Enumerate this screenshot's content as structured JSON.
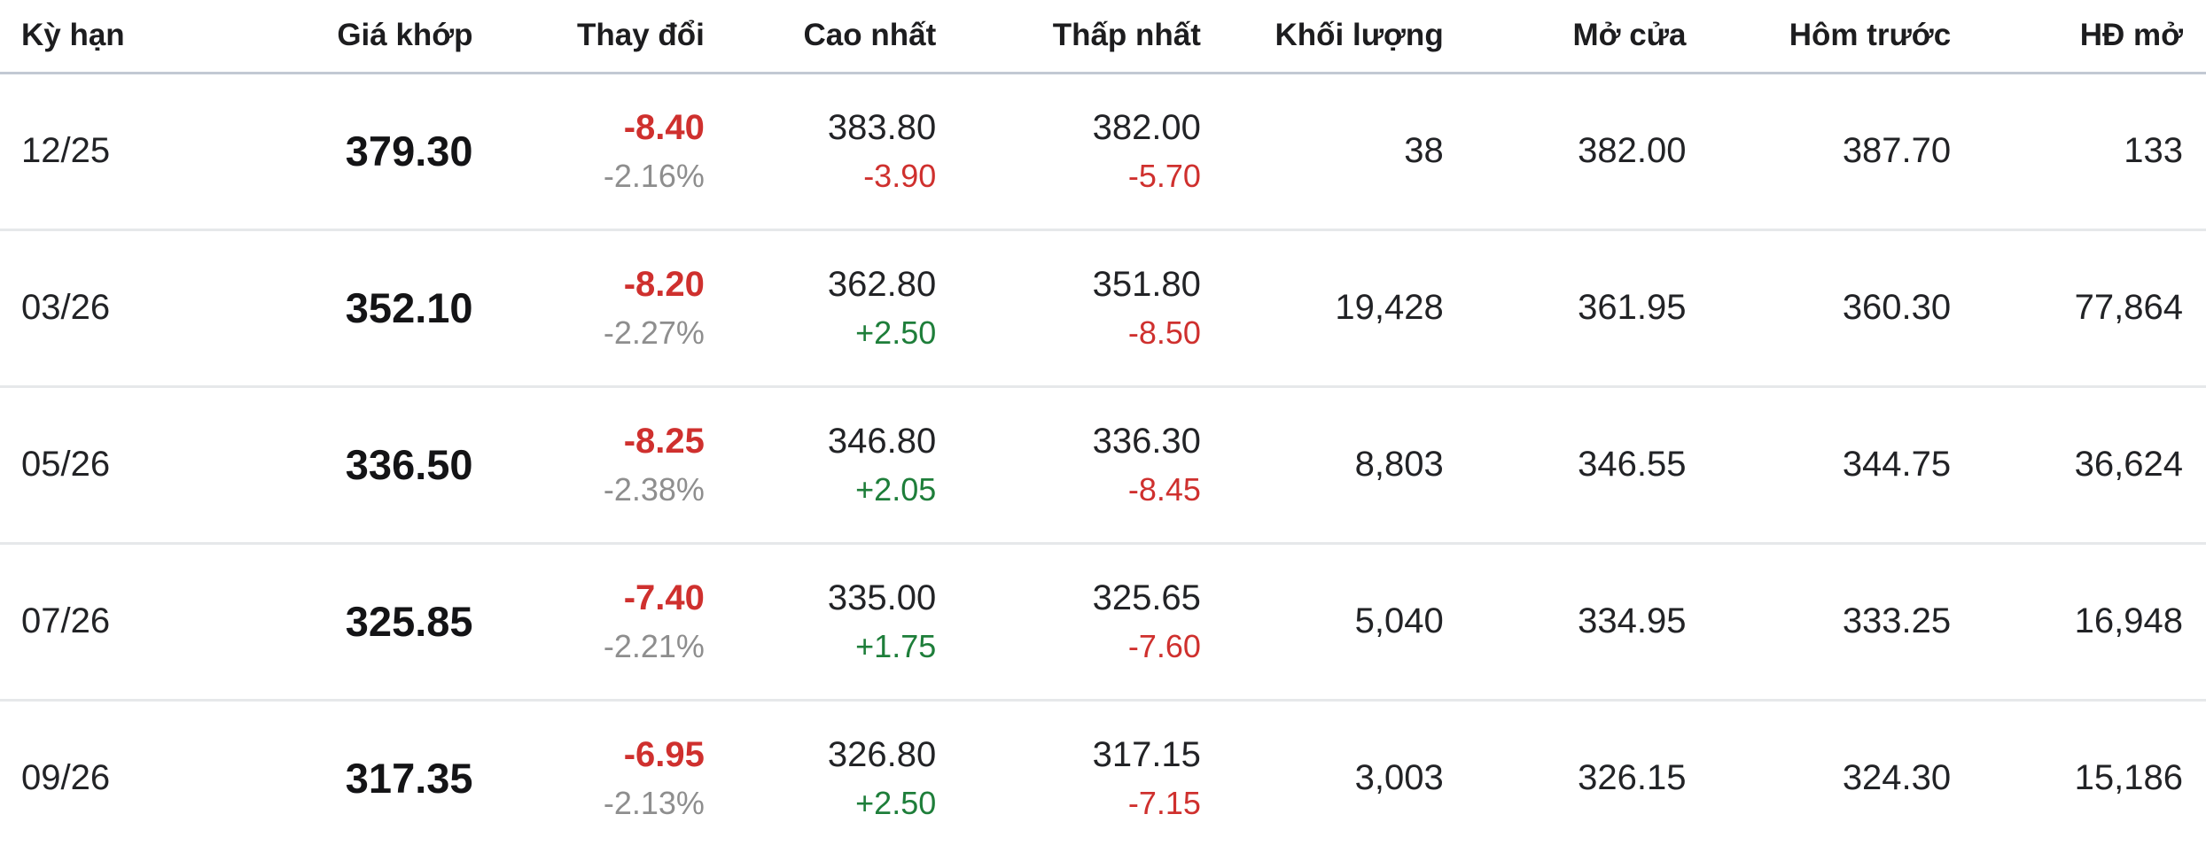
{
  "colors": {
    "down": "#cf302e",
    "up": "#1e7e3a",
    "muted": "#8e8e8e",
    "text": "#1d1d1f",
    "header_border": "#c2c9d3",
    "row_border": "#e6e8ea"
  },
  "table": {
    "headers": [
      "Kỳ hạn",
      "Giá khớp",
      "Thay đổi",
      "Cao nhất",
      "Thấp nhất",
      "Khối lượng",
      "Mở cửa",
      "Hôm trước",
      "HĐ mở"
    ],
    "rows": [
      {
        "term": "12/25",
        "price": "379.30",
        "change": "-8.40",
        "change_dir": "down",
        "change_pct": "-2.16%",
        "high": "383.80",
        "high_change": "-3.90",
        "high_change_dir": "down",
        "low": "382.00",
        "low_change": "-5.70",
        "low_change_dir": "down",
        "volume": "38",
        "open": "382.00",
        "prev": "387.70",
        "open_interest": "133"
      },
      {
        "term": "03/26",
        "price": "352.10",
        "change": "-8.20",
        "change_dir": "down",
        "change_pct": "-2.27%",
        "high": "362.80",
        "high_change": "+2.50",
        "high_change_dir": "up",
        "low": "351.80",
        "low_change": "-8.50",
        "low_change_dir": "down",
        "volume": "19,428",
        "open": "361.95",
        "prev": "360.30",
        "open_interest": "77,864"
      },
      {
        "term": "05/26",
        "price": "336.50",
        "change": "-8.25",
        "change_dir": "down",
        "change_pct": "-2.38%",
        "high": "346.80",
        "high_change": "+2.05",
        "high_change_dir": "up",
        "low": "336.30",
        "low_change": "-8.45",
        "low_change_dir": "down",
        "volume": "8,803",
        "open": "346.55",
        "prev": "344.75",
        "open_interest": "36,624"
      },
      {
        "term": "07/26",
        "price": "325.85",
        "change": "-7.40",
        "change_dir": "down",
        "change_pct": "-2.21%",
        "high": "335.00",
        "high_change": "+1.75",
        "high_change_dir": "up",
        "low": "325.65",
        "low_change": "-7.60",
        "low_change_dir": "down",
        "volume": "5,040",
        "open": "334.95",
        "prev": "333.25",
        "open_interest": "16,948"
      },
      {
        "term": "09/26",
        "price": "317.35",
        "change": "-6.95",
        "change_dir": "down",
        "change_pct": "-2.13%",
        "high": "326.80",
        "high_change": "+2.50",
        "high_change_dir": "up",
        "low": "317.15",
        "low_change": "-7.15",
        "low_change_dir": "down",
        "volume": "3,003",
        "open": "326.15",
        "prev": "324.30",
        "open_interest": "15,186"
      }
    ]
  }
}
